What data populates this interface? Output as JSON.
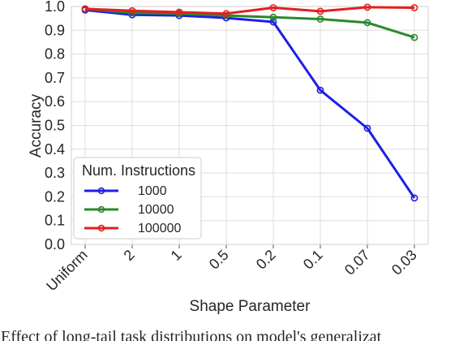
{
  "chart_data": {
    "type": "line",
    "xlabel": "Shape Parameter",
    "ylabel": "Accuracy",
    "categories": [
      "Uniform",
      "2",
      "1",
      "0.5",
      "0.2",
      "0.1",
      "0.07",
      "0.03"
    ],
    "yticks": [
      "0.0",
      "0.1",
      "0.2",
      "0.3",
      "0.4",
      "0.5",
      "0.6",
      "0.7",
      "0.8",
      "0.9",
      "1.0"
    ],
    "ylim": [
      0.0,
      1.0
    ],
    "grid": true,
    "legend": {
      "title": "Num. Instructions",
      "placement": "lower-left"
    },
    "series": [
      {
        "name": "1000",
        "color": "#1f1fe6",
        "values": [
          0.985,
          0.965,
          0.962,
          0.952,
          0.935,
          0.648,
          0.488,
          0.195
        ]
      },
      {
        "name": "10000",
        "color": "#2a8a2a",
        "values": [
          0.99,
          0.973,
          0.97,
          0.962,
          0.955,
          0.947,
          0.932,
          0.87
        ]
      },
      {
        "name": "100000",
        "color": "#e61e1e",
        "values": [
          0.99,
          0.982,
          0.976,
          0.97,
          0.995,
          0.98,
          0.997,
          0.995
        ]
      }
    ]
  },
  "caption": "Effect of long-tail task distributions on model's generalizat"
}
